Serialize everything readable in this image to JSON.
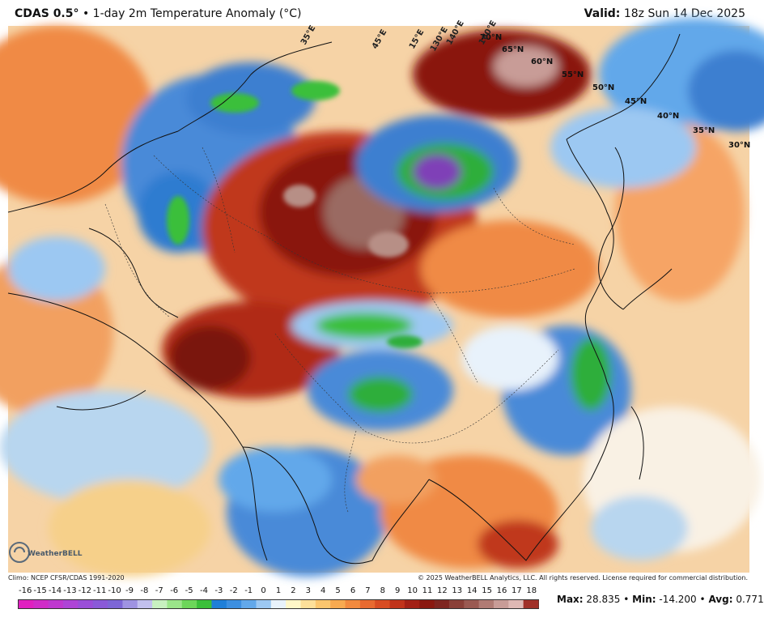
{
  "header": {
    "model": "CDAS 0.5°",
    "bullet": "•",
    "title": "1-day 2m Temperature Anomaly (°C)",
    "valid_label": "Valid:",
    "valid_value": "18z Sun 14 Dec 2025"
  },
  "map": {
    "lat_labels": [
      "70°N",
      "65°N",
      "60°N",
      "55°N",
      "50°N",
      "45°N",
      "40°N",
      "35°N",
      "30°N"
    ],
    "lon_labels": [
      "35°E",
      "45°E",
      "15°E",
      "130°E",
      "140°E",
      "160°E"
    ],
    "logo_text": "WeatherBELL"
  },
  "colors": {
    "heat_dark": "#7a1408",
    "heat_mid": "#c0391b",
    "warm": "#f08a45",
    "light_warm": "#f7c890",
    "neutral": "#f3f6fb",
    "cool": "#9fc6ea",
    "cold": "#3d7fd0",
    "very_cold": "#2fae3a",
    "extreme_cold": "#7f3fb7",
    "extreme_heat": "#b78f86"
  },
  "footer": {
    "climo": "Climo: NCEP CFSR/CDAS 1991-2020",
    "copyright": "© 2025 WeatherBELL Analytics, LLC. All rights reserved. License required for commercial distribution."
  },
  "colorbar": {
    "labels": [
      "-16",
      "-15",
      "-14",
      "-13",
      "-12",
      "-11",
      "-10",
      "-9",
      "-8",
      "-7",
      "-6",
      "-5",
      "-4",
      "-3",
      "-2",
      "-1",
      "0",
      "1",
      "2",
      "3",
      "4",
      "5",
      "6",
      "7",
      "8",
      "9",
      "10",
      "11",
      "12",
      "13",
      "14",
      "15",
      "16",
      "17",
      "18"
    ],
    "colors": [
      "#e020c0",
      "#d02cc8",
      "#bf38cf",
      "#ae44d6",
      "#9a4ed8",
      "#8a5ad8",
      "#7d66d6",
      "#9f93e2",
      "#c2c0ee",
      "#c8f0c0",
      "#9be58a",
      "#6dd65a",
      "#3bbf3a",
      "#1f7fd8",
      "#3d8fe0",
      "#62a8ea",
      "#9cc8f2",
      "#e8f2fb",
      "#fff7c8",
      "#fde09a",
      "#fbc66e",
      "#f8aa50",
      "#f28a3e",
      "#e86a30",
      "#d84c22",
      "#c0331a",
      "#a32015",
      "#8a1810",
      "#7e2520",
      "#8a4038",
      "#9a5a52",
      "#b07b74",
      "#c89c97",
      "#deb8b4",
      "#a03028"
    ]
  },
  "stats": {
    "max_label": "Max:",
    "max_value": "28.835",
    "min_label": "Min:",
    "min_value": "-14.200",
    "avg_label": "Avg:",
    "avg_value": "0.771",
    "sep": "•"
  }
}
